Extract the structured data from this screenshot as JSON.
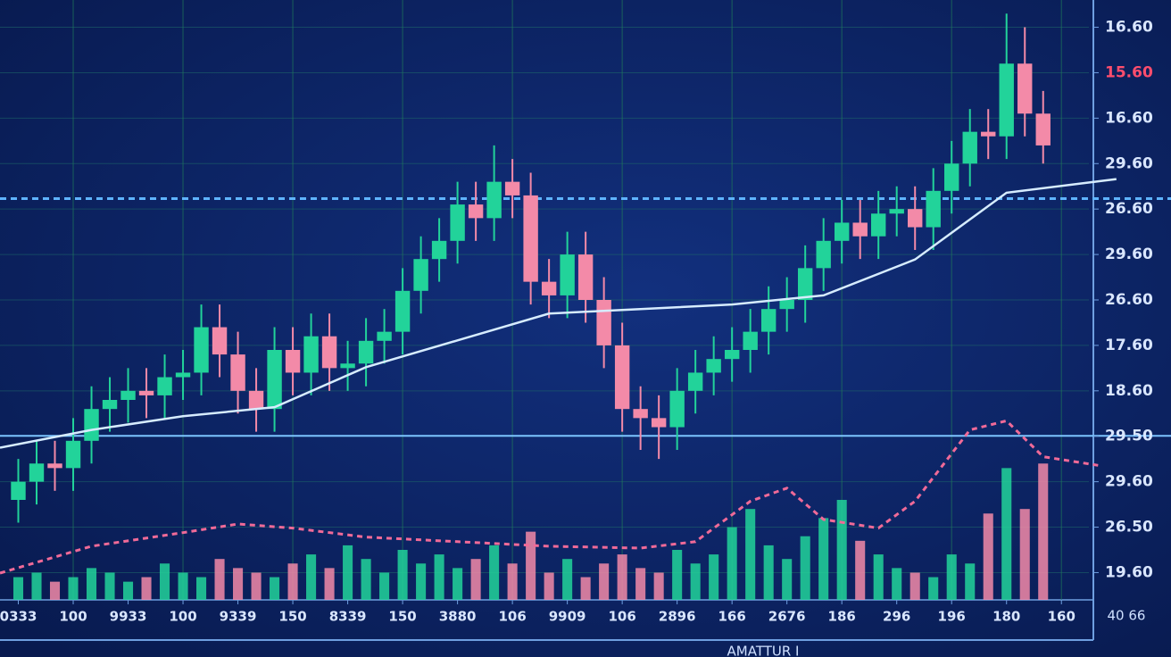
{
  "chart_data": {
    "type": "candlestick",
    "up_color": "#22d39a",
    "down_color": "#f38aa8",
    "xlim": [
      0,
      59.5
    ],
    "ylim": [
      0,
      13.2
    ],
    "grid": true,
    "xticks": [
      {
        "value": 1,
        "label": "0333"
      },
      {
        "value": 4,
        "label": "100"
      },
      {
        "value": 7,
        "label": "9933"
      },
      {
        "value": 10,
        "label": "100"
      },
      {
        "value": 13,
        "label": "9339"
      },
      {
        "value": 16,
        "label": "150"
      },
      {
        "value": 19,
        "label": "8339"
      },
      {
        "value": 22,
        "label": "150"
      },
      {
        "value": 25,
        "label": "3880"
      },
      {
        "value": 28,
        "label": "106"
      },
      {
        "value": 31,
        "label": "9909"
      },
      {
        "value": 34,
        "label": "106"
      },
      {
        "value": 37,
        "label": "2896"
      },
      {
        "value": 40,
        "label": "166"
      },
      {
        "value": 43,
        "label": "2676"
      },
      {
        "value": 46,
        "label": "186"
      },
      {
        "value": 49,
        "label": "296"
      },
      {
        "value": 52,
        "label": "196"
      },
      {
        "value": 55,
        "label": "180"
      },
      {
        "value": 58,
        "label": "160"
      }
    ],
    "yticks": [
      {
        "value": 12.6,
        "label": "16.60"
      },
      {
        "value": 11.6,
        "label": "15.60",
        "color": "#ff4d6d"
      },
      {
        "value": 10.6,
        "label": "16.60"
      },
      {
        "value": 9.6,
        "label": "29.60"
      },
      {
        "value": 8.6,
        "label": "26.60"
      },
      {
        "value": 7.6,
        "label": "29.60"
      },
      {
        "value": 6.6,
        "label": "26.60"
      },
      {
        "value": 5.6,
        "label": "17.60"
      },
      {
        "value": 4.6,
        "label": "18.60"
      },
      {
        "value": 3.6,
        "label": "29.50"
      },
      {
        "value": 2.6,
        "label": "29.60"
      },
      {
        "value": 1.6,
        "label": "26.50"
      },
      {
        "value": 0.6,
        "label": "19.60"
      }
    ],
    "x": [
      1,
      2,
      3,
      4,
      5,
      6,
      7,
      8,
      9,
      10,
      11,
      12,
      13,
      14,
      15,
      16,
      17,
      18,
      19,
      20,
      21,
      22,
      23,
      24,
      25,
      26,
      27,
      28,
      29,
      30,
      31,
      32,
      33,
      34,
      35,
      36,
      37,
      38,
      39,
      40,
      41,
      42,
      43,
      44,
      45,
      46,
      47,
      48,
      49,
      50,
      51,
      52,
      53,
      54,
      55,
      56,
      57
    ],
    "open": [
      2.2,
      2.6,
      3.0,
      2.9,
      3.5,
      4.2,
      4.4,
      4.6,
      4.5,
      4.9,
      5.0,
      6.0,
      5.4,
      4.6,
      4.2,
      5.5,
      5.0,
      5.8,
      5.1,
      5.2,
      5.7,
      5.9,
      6.8,
      7.5,
      7.9,
      8.7,
      8.4,
      9.2,
      8.9,
      7.0,
      6.7,
      7.6,
      6.6,
      5.6,
      4.2,
      4.0,
      3.8,
      4.6,
      5.0,
      5.3,
      5.5,
      5.9,
      6.4,
      6.6,
      7.3,
      7.9,
      8.3,
      8.0,
      8.5,
      8.6,
      8.2,
      9.0,
      9.6,
      10.3,
      10.2,
      11.8,
      10.7
    ],
    "high": [
      3.1,
      3.5,
      3.5,
      4.0,
      4.7,
      4.9,
      5.1,
      5.1,
      5.4,
      5.5,
      6.5,
      6.5,
      5.9,
      5.1,
      6.0,
      6.0,
      6.3,
      6.3,
      5.7,
      6.2,
      6.4,
      7.3,
      8.0,
      8.4,
      9.2,
      9.2,
      10.0,
      9.7,
      9.4,
      7.5,
      8.1,
      8.1,
      7.1,
      6.1,
      4.7,
      4.5,
      5.1,
      5.5,
      5.8,
      6.0,
      6.4,
      6.9,
      7.1,
      7.8,
      8.4,
      8.8,
      8.8,
      9.0,
      9.1,
      9.1,
      9.5,
      10.1,
      10.8,
      10.8,
      12.9,
      12.6,
      11.2
    ],
    "low": [
      1.7,
      2.1,
      2.4,
      2.4,
      3.0,
      3.7,
      3.9,
      4.0,
      4.0,
      4.4,
      4.5,
      4.9,
      4.1,
      3.7,
      3.7,
      4.5,
      4.5,
      4.6,
      4.6,
      4.7,
      5.2,
      5.4,
      6.3,
      7.0,
      7.4,
      7.9,
      7.9,
      8.4,
      6.5,
      6.2,
      6.2,
      6.1,
      5.1,
      3.7,
      3.3,
      3.1,
      3.3,
      4.1,
      4.5,
      4.8,
      5.0,
      5.4,
      5.9,
      6.1,
      6.8,
      7.4,
      7.5,
      7.5,
      8.0,
      7.7,
      7.7,
      8.5,
      9.1,
      9.7,
      9.7,
      10.2,
      9.6
    ],
    "close": [
      2.6,
      3.0,
      2.9,
      3.5,
      4.2,
      4.4,
      4.6,
      4.5,
      4.9,
      5.0,
      6.0,
      5.4,
      4.6,
      4.2,
      5.5,
      5.0,
      5.8,
      5.1,
      5.2,
      5.7,
      5.9,
      6.8,
      7.5,
      7.9,
      8.7,
      8.4,
      9.2,
      8.9,
      7.0,
      6.7,
      7.6,
      6.6,
      5.6,
      4.2,
      4.0,
      3.8,
      4.6,
      5.0,
      5.3,
      5.5,
      5.9,
      6.4,
      6.6,
      7.3,
      7.9,
      8.3,
      8.0,
      8.5,
      8.6,
      8.2,
      9.0,
      9.6,
      10.3,
      10.2,
      11.8,
      10.7,
      10.0
    ],
    "volume": [
      0.5,
      0.6,
      0.4,
      0.5,
      0.7,
      0.6,
      0.4,
      0.5,
      0.8,
      0.6,
      0.5,
      0.9,
      0.7,
      0.6,
      0.5,
      0.8,
      1.0,
      0.7,
      1.2,
      0.9,
      0.6,
      1.1,
      0.8,
      1.0,
      0.7,
      0.9,
      1.2,
      0.8,
      1.5,
      0.6,
      0.9,
      0.5,
      0.8,
      1.0,
      0.7,
      0.6,
      1.1,
      0.8,
      1.0,
      1.6,
      2.0,
      1.2,
      0.9,
      1.4,
      1.8,
      2.2,
      1.3,
      1.0,
      0.7,
      0.6,
      0.5,
      1.0,
      0.8,
      1.9,
      2.9,
      2.0,
      3.0
    ],
    "lines": [
      {
        "color": "#d6ecff",
        "dashed": false,
        "x": [
          0,
          5,
          10,
          15,
          20,
          25,
          30,
          35,
          40,
          45,
          50,
          55,
          61
        ],
        "values": [
          3.35,
          3.74,
          4.04,
          4.24,
          5.12,
          5.71,
          6.3,
          6.4,
          6.5,
          6.7,
          7.49,
          8.96,
          9.26
        ]
      },
      {
        "color": "#f06a98",
        "dashed": true,
        "x": [
          0,
          5,
          10,
          13,
          16,
          20,
          25,
          30,
          35,
          38,
          41,
          43,
          45,
          48,
          50,
          53,
          55,
          57,
          60
        ],
        "values": [
          0.59,
          1.18,
          1.48,
          1.67,
          1.58,
          1.38,
          1.28,
          1.18,
          1.14,
          1.28,
          2.17,
          2.46,
          1.77,
          1.58,
          2.17,
          3.74,
          3.94,
          3.15,
          2.96
        ]
      }
    ],
    "levels": [
      {
        "value": 8.83,
        "color": "#5fb4ff",
        "dashed": true
      },
      {
        "value": 3.61,
        "color": "#7cc4ff",
        "dashed": false
      }
    ],
    "x_axis_label": "AMATTUR I",
    "corner_label": "40 66"
  }
}
